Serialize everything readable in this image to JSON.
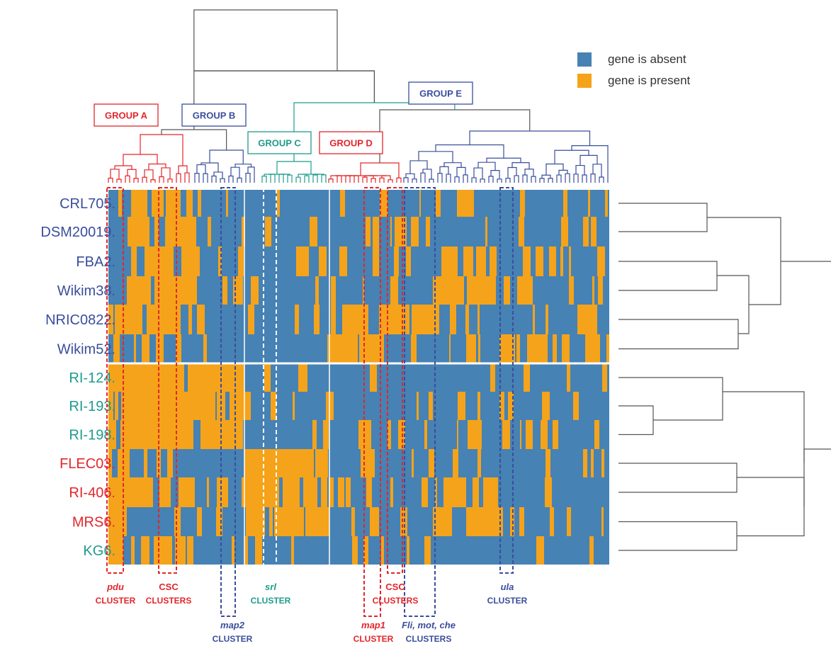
{
  "colors": {
    "absent": "#4682B4",
    "present": "#F5A31A",
    "red": "#E3262B",
    "navy": "#3A4E9C",
    "teal": "#1E9C8C",
    "tree": "#555555"
  },
  "legend": [
    {
      "label": "gene is absent",
      "color": "#4682B4"
    },
    {
      "label": "gene is present",
      "color": "#F5A31A"
    }
  ],
  "groups": [
    {
      "label": "GROUP A",
      "color": "#E3262B"
    },
    {
      "label": "GROUP B",
      "color": "#3A4E9C"
    },
    {
      "label": "GROUP C",
      "color": "#1E9C8C"
    },
    {
      "label": "GROUP D",
      "color": "#E3262B"
    },
    {
      "label": "GROUP E",
      "color": "#3A4E9C"
    }
  ],
  "clusters": [
    {
      "name": "pdu",
      "suffix": "CLUSTER",
      "color": "#E3262B"
    },
    {
      "name": "CSC",
      "suffix": "CLUSTERS",
      "color": "#E3262B"
    },
    {
      "name": "map2",
      "suffix": "CLUSTER",
      "color": "#3A4E9C"
    },
    {
      "name": "srl",
      "suffix": "CLUSTER",
      "color": "#1E9C8C"
    },
    {
      "name": "map1",
      "suffix": "CLUSTER",
      "color": "#E3262B"
    },
    {
      "name": "CSC",
      "suffix": "CLUSTERS",
      "color": "#E3262B"
    },
    {
      "name": "Fli, mot, che",
      "suffix": "CLUSTERS",
      "color": "#3A4E9C"
    },
    {
      "name": "ula",
      "suffix": "CLUSTER",
      "color": "#3A4E9C"
    }
  ],
  "chart_data": {
    "type": "heatmap",
    "legend_position": "top-right",
    "rows": [
      {
        "label": "CRL705.",
        "color": "#3A4E9C"
      },
      {
        "label": "DSM20019.",
        "color": "#3A4E9C"
      },
      {
        "label": "FBA2.",
        "color": "#3A4E9C"
      },
      {
        "label": "Wikim38.",
        "color": "#3A4E9C"
      },
      {
        "label": "NRIC0822.",
        "color": "#3A4E9C"
      },
      {
        "label": "Wikim52.",
        "color": "#3A4E9C"
      },
      {
        "label": "RI-124.",
        "color": "#1E9C8C"
      },
      {
        "label": "RI-193.",
        "color": "#1E9C8C"
      },
      {
        "label": "RI-198.",
        "color": "#1E9C8C"
      },
      {
        "label": "FLEC03.",
        "color": "#E3262B"
      },
      {
        "label": "RI-406.",
        "color": "#E3262B"
      },
      {
        "label": "MRS6.",
        "color": "#E3262B"
      },
      {
        "label": "KG6.",
        "color": "#1E9C8C"
      }
    ],
    "values_legend": {
      "0": "gene is absent",
      "1": "gene is present"
    },
    "group_block_presence": [
      [
        0,
        1,
        0,
        0,
        0,
        0,
        0,
        0,
        0
      ],
      [
        0,
        1,
        0,
        0,
        0,
        0,
        1,
        0,
        0
      ],
      [
        0,
        1,
        0,
        0,
        0,
        0,
        0,
        1,
        0
      ],
      [
        0,
        1,
        0,
        0,
        0,
        0,
        0,
        1,
        0
      ],
      [
        1,
        1,
        0,
        0,
        0,
        1,
        1,
        0,
        0
      ],
      [
        0,
        0,
        0,
        0,
        0,
        1,
        0,
        0,
        1
      ],
      [
        1,
        1,
        1,
        0,
        0,
        0,
        0,
        0,
        0
      ],
      [
        1,
        1,
        1,
        0,
        0,
        0,
        0,
        0,
        0
      ],
      [
        1,
        1,
        1,
        0,
        0,
        0,
        0,
        0,
        0
      ],
      [
        1,
        0,
        0,
        1,
        1,
        0,
        0,
        0,
        0
      ],
      [
        1,
        1,
        0,
        1,
        1,
        0,
        0,
        1,
        0
      ],
      [
        1,
        0,
        0,
        1,
        1,
        0,
        0,
        1,
        0
      ],
      [
        1,
        1,
        0,
        0,
        0,
        0,
        0,
        0,
        0
      ]
    ]
  }
}
